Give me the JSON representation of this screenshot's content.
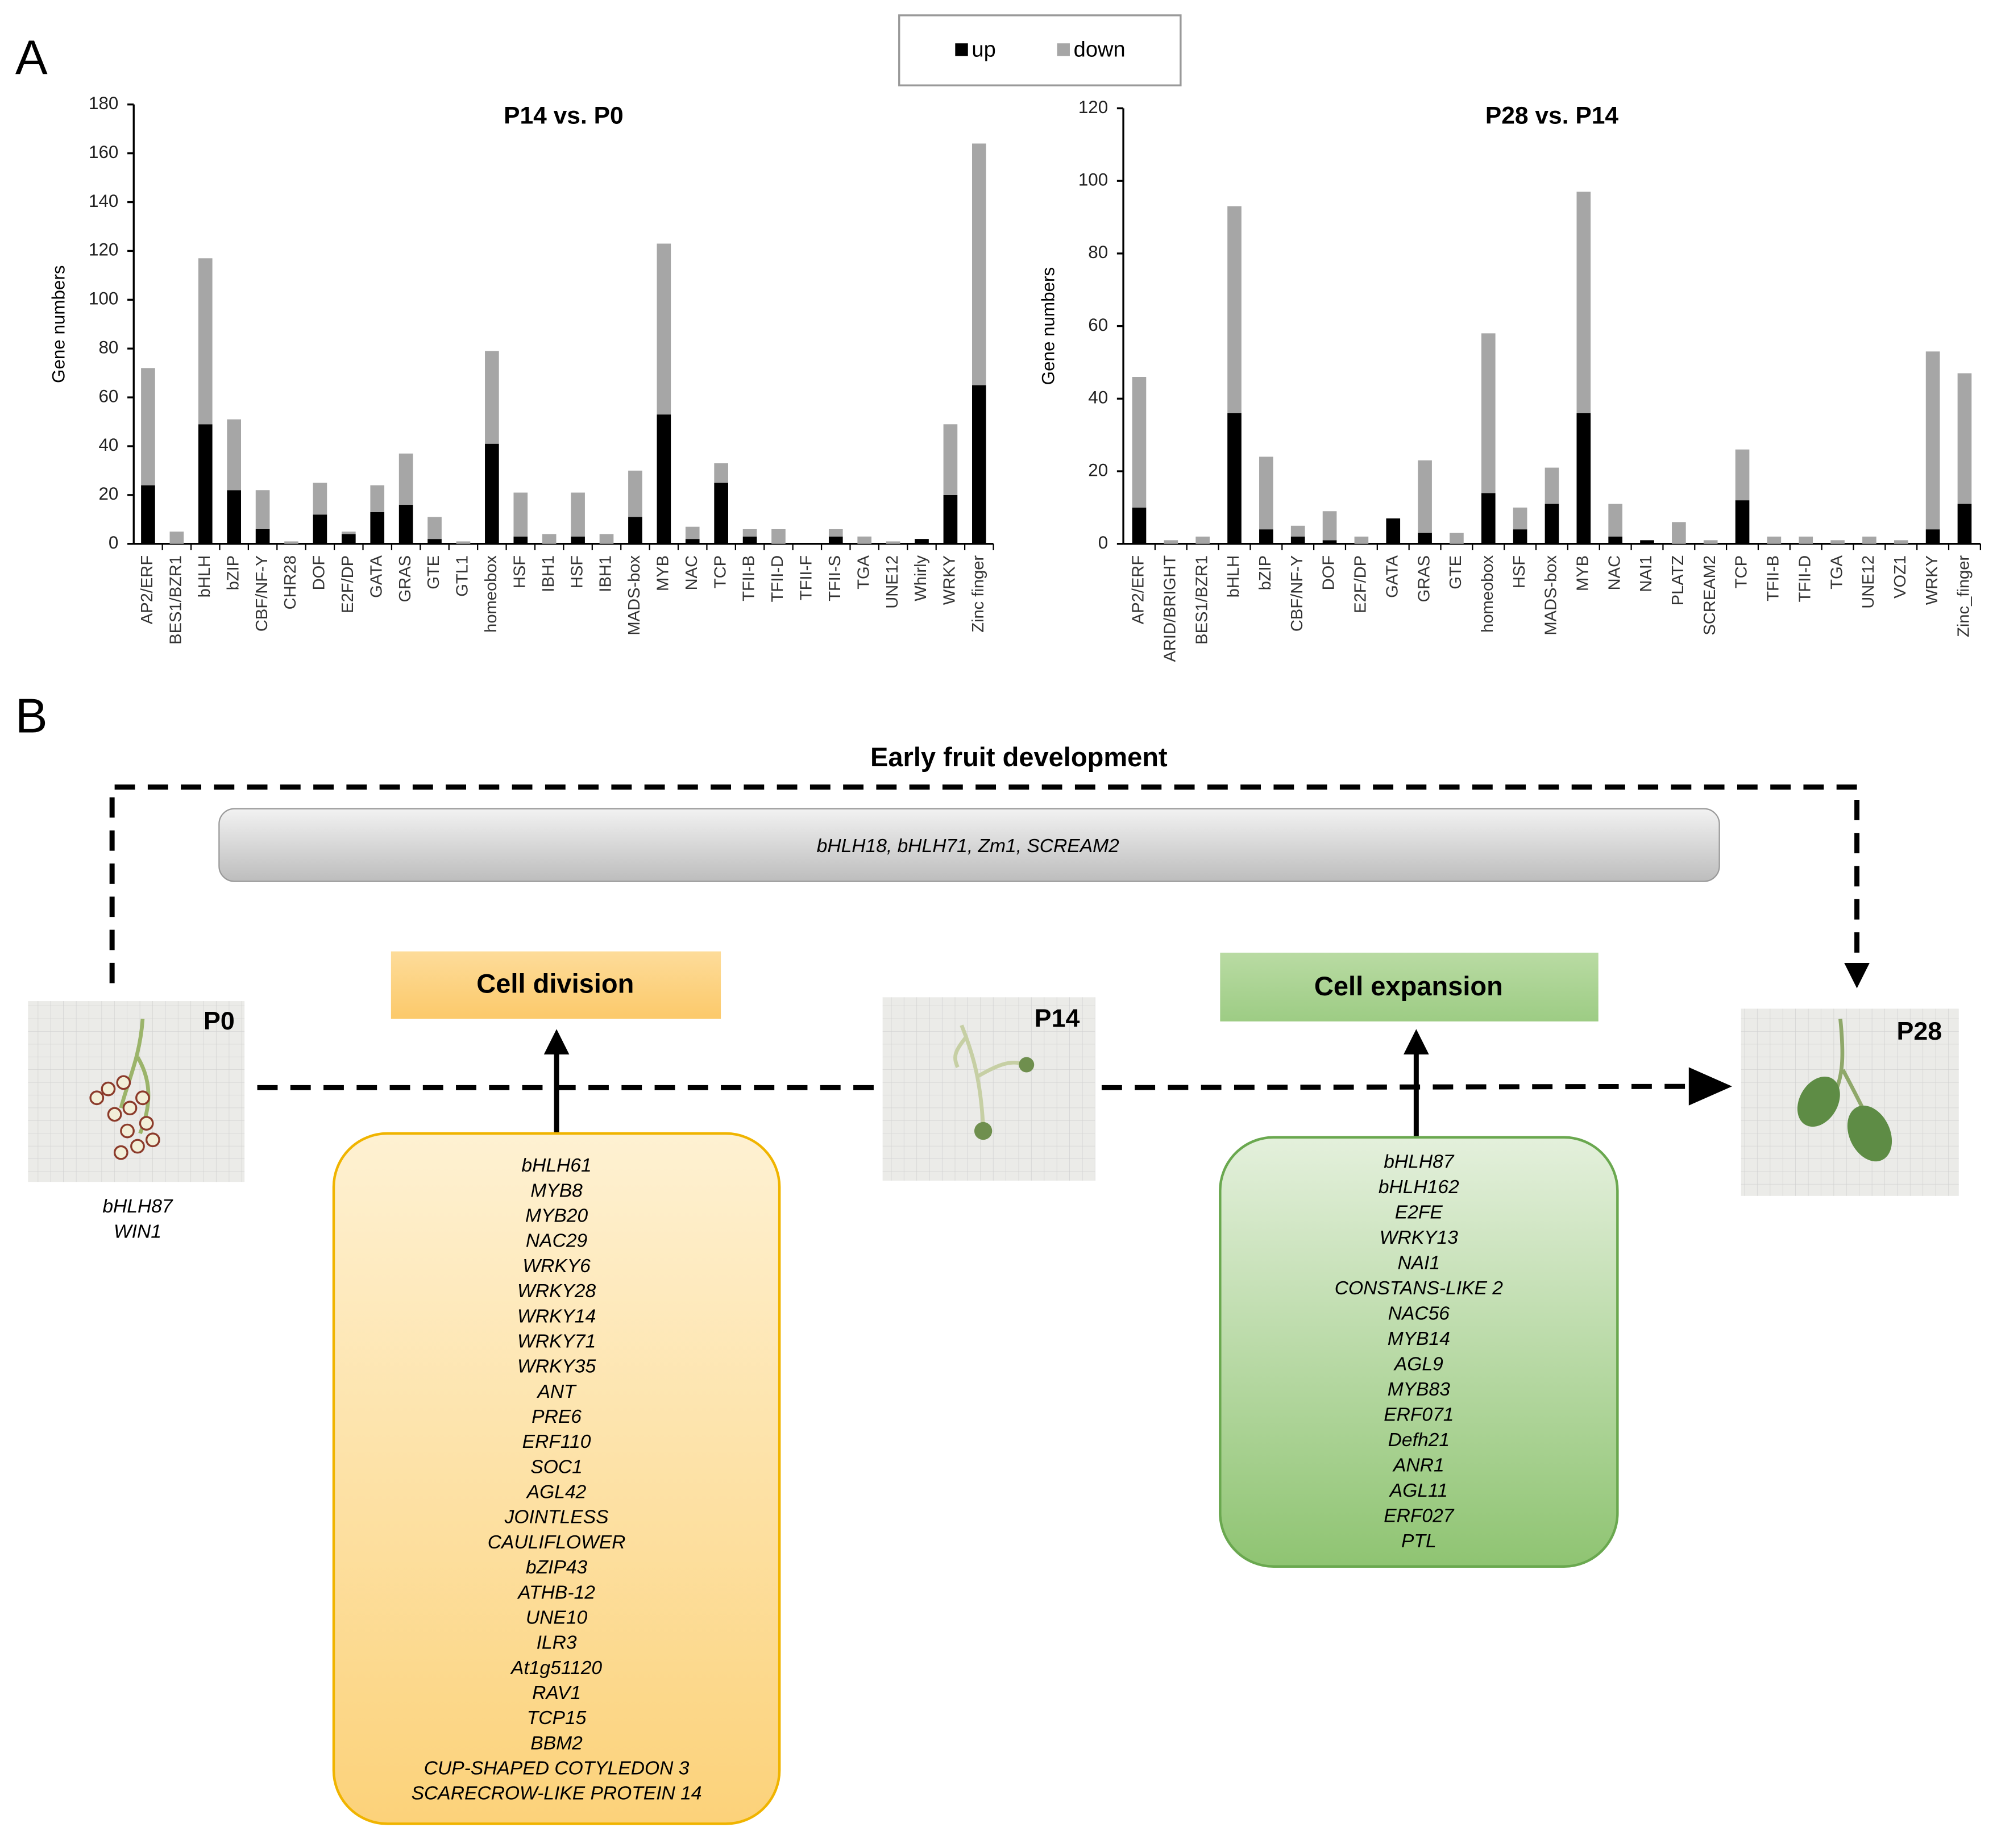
{
  "panel_labels": [
    "A",
    "B"
  ],
  "chart_data": [
    {
      "type": "bar",
      "stacked": true,
      "title": "P14 vs. P0",
      "y_label": "Gene numbers",
      "categories": [
        "AP2/ERF",
        "BES1/BZR1",
        "bHLH",
        "bZIP",
        "CBF/NF-Y",
        "CHR28",
        "DOF",
        "E2F/DP",
        "GATA",
        "GRAS",
        "GTE",
        "GTL1",
        "homeobox",
        "HSF",
        "IBH1",
        "HSF",
        "IBH1",
        "MADS-box",
        "MYB",
        "NAC",
        "TCP",
        "TFII-B",
        "TFII-D",
        "TFII-F",
        "TFII-S",
        "TGA",
        "UNE12",
        "Whirly",
        "WRKY",
        "Zinc finger"
      ],
      "series": [
        {
          "name": "up",
          "color": "#000000",
          "values": [
            24,
            0,
            49,
            22,
            6,
            0,
            12,
            4,
            13,
            16,
            2,
            0,
            41,
            3,
            0,
            3,
            0,
            11,
            53,
            2,
            25,
            3,
            0,
            0,
            3,
            0,
            0,
            2,
            20,
            65
          ]
        },
        {
          "name": "down",
          "color": "#a6a6a6",
          "values": [
            48,
            5,
            68,
            29,
            16,
            1,
            13,
            1,
            11,
            21,
            9,
            1,
            38,
            18,
            4,
            18,
            4,
            19,
            70,
            5,
            8,
            3,
            6,
            0,
            3,
            3,
            1,
            0,
            29,
            99
          ]
        }
      ],
      "ylim": [
        0,
        180
      ],
      "yticks": [
        0,
        20,
        40,
        60,
        80,
        100,
        120,
        140,
        160,
        180
      ]
    },
    {
      "type": "bar",
      "stacked": true,
      "title": "P28 vs. P14",
      "y_label": "Gene numbers",
      "categories": [
        "AP2/ERF",
        "ARID/BRIGHT",
        "BES1/BZR1",
        "bHLH",
        "bZIP",
        "CBF/NF-Y",
        "DOF",
        "E2F/DP",
        "GATA",
        "GRAS",
        "GTE",
        "homeobox",
        "HSF",
        "MADS-box",
        "MYB",
        "NAC",
        "NAI1",
        "PLATZ",
        "SCREAM2",
        "TCP",
        "TFII-B",
        "TFII-D",
        "TGA",
        "UNE12",
        "VOZ1",
        "WRKY",
        "Zinc_finger"
      ],
      "series": [
        {
          "name": "up",
          "color": "#000000",
          "values": [
            10,
            0,
            0,
            36,
            4,
            2,
            1,
            0,
            7,
            3,
            0,
            14,
            4,
            11,
            36,
            2,
            1,
            0,
            0,
            12,
            0,
            0,
            0,
            0,
            0,
            4,
            11
          ]
        },
        {
          "name": "down",
          "color": "#a6a6a6",
          "values": [
            36,
            1,
            2,
            57,
            20,
            3,
            8,
            2,
            0,
            20,
            3,
            44,
            6,
            10,
            61,
            9,
            0,
            6,
            1,
            14,
            2,
            2,
            1,
            2,
            1,
            49,
            36
          ]
        }
      ],
      "ylim": [
        0,
        120
      ],
      "yticks": [
        0,
        20,
        40,
        60,
        80,
        100,
        120
      ]
    }
  ],
  "diagram": {
    "title": "Early fruit development",
    "common_genes": "bHLH18, bHLH71, Zm1, SCREAM2",
    "stages": [
      {
        "label": "P0",
        "genes": [
          "bHLH87",
          "WIN1"
        ]
      },
      {
        "label": "P14"
      },
      {
        "label": "P28"
      }
    ],
    "processes": [
      {
        "label": "Cell division",
        "genes": [
          "bHLH61",
          "MYB8",
          "MYB20",
          "NAC29",
          "WRKY6",
          "WRKY28",
          "WRKY14",
          "WRKY71",
          "WRKY35",
          "ANT",
          "PRE6",
          "ERF110",
          "SOC1",
          "AGL42",
          "JOINTLESS",
          "CAULIFLOWER",
          "bZIP43",
          "ATHB-12",
          "UNE10",
          "ILR3",
          "At1g51120",
          "RAV1",
          "TCP15",
          "BBM2",
          "CUP-SHAPED COTYLEDON 3",
          "SCARECROW-LIKE PROTEIN 14"
        ]
      },
      {
        "label": "Cell expansion",
        "genes": [
          "bHLH87",
          "bHLH162",
          "E2FE",
          "WRKY13",
          "NAI1",
          "CONSTANS-LIKE 2",
          "NAC56",
          "MYB14",
          "AGL9",
          "MYB83",
          "ERF071",
          "Defh21",
          "ANR1",
          "AGL11",
          "ERF027",
          "PTL"
        ]
      }
    ]
  }
}
